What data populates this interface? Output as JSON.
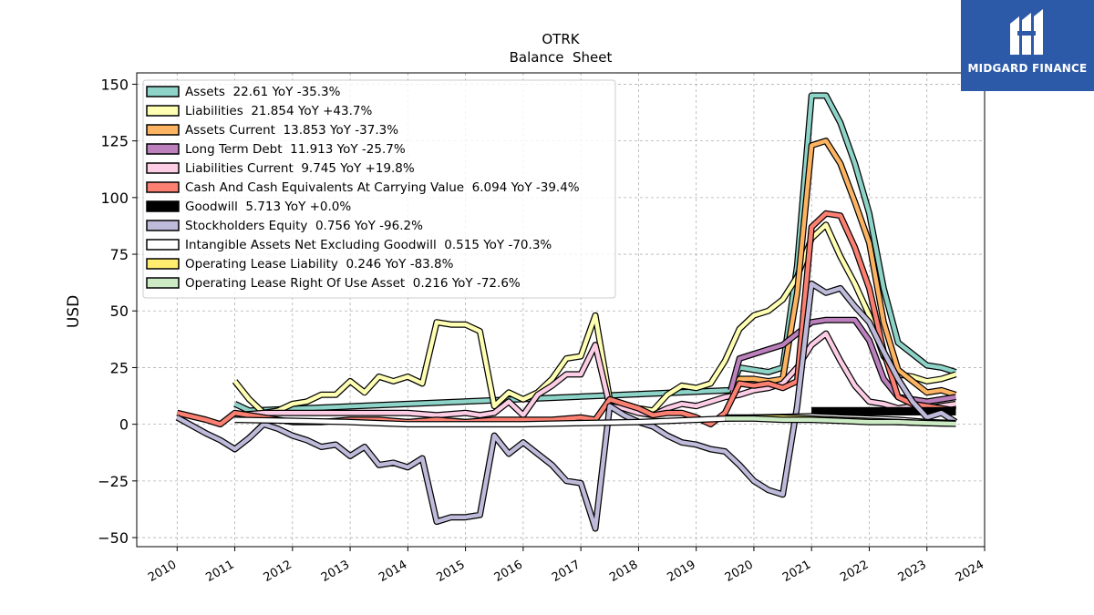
{
  "brand": {
    "name": "MIDGARD FINANCE",
    "color": "#2d5aa8"
  },
  "chart_data": {
    "type": "line",
    "title": "OTRK",
    "subtitle": "Balance  Sheet",
    "xlabel": "",
    "ylabel": "USD",
    "xlim": [
      2009.3,
      2024.0
    ],
    "ylim": [
      -54,
      155
    ],
    "x_ticks": [
      "2010",
      "2011",
      "2012",
      "2013",
      "2014",
      "2015",
      "2016",
      "2017",
      "2018",
      "2019",
      "2020",
      "2021",
      "2022",
      "2023",
      "2024"
    ],
    "y_ticks": [
      "150",
      "125",
      "100",
      "75",
      "50",
      "25",
      "0",
      "−25",
      "−50"
    ],
    "grid": true,
    "legend_position": "top-left",
    "series": [
      {
        "name": "Assets",
        "legend": "Assets  22.61 YoY -35.3%",
        "color": "#8dd3c7",
        "x": [
          2011.0,
          2011.25,
          2019.6,
          2019.75,
          2020.0,
          2020.25,
          2020.5,
          2020.75,
          2021.0,
          2021.25,
          2021.5,
          2021.75,
          2022.0,
          2022.25,
          2022.5,
          2022.75,
          2023.0,
          2023.25,
          2023.5
        ],
        "y": [
          9,
          6,
          15,
          25,
          24,
          23,
          25,
          70,
          145,
          145,
          133,
          115,
          93,
          60,
          36,
          31,
          26,
          25,
          23
        ]
      },
      {
        "name": "Liabilities",
        "legend": "Liabilities  21.854 YoY +43.7%",
        "color": "#ffffb3",
        "x": [
          2011.0,
          2011.25,
          2011.5,
          2011.75,
          2012.0,
          2012.25,
          2012.5,
          2012.75,
          2013.0,
          2013.25,
          2013.5,
          2013.75,
          2014.0,
          2014.25,
          2014.5,
          2014.75,
          2015.0,
          2015.25,
          2015.5,
          2015.75,
          2016.0,
          2016.25,
          2016.5,
          2016.75,
          2017.0,
          2017.25,
          2017.5,
          2017.75,
          2018.0,
          2018.25,
          2018.5,
          2018.75,
          2019.0,
          2019.25,
          2019.5,
          2019.75,
          2020.0,
          2020.25,
          2020.5,
          2020.75,
          2021.0,
          2021.25,
          2021.5,
          2021.75,
          2022.0,
          2022.25,
          2022.5,
          2022.75,
          2023.0,
          2023.25,
          2023.5
        ],
        "y": [
          19,
          11,
          5,
          6,
          9,
          10,
          13,
          13,
          19,
          14,
          21,
          19,
          21,
          18,
          45,
          44,
          44,
          41,
          8,
          14,
          11,
          14,
          20,
          29,
          30,
          48,
          11,
          9,
          7,
          6,
          13,
          17,
          16,
          18,
          28,
          42,
          48,
          50,
          55,
          65,
          82,
          88,
          74,
          62,
          48,
          30,
          22,
          21,
          19,
          20,
          22
        ]
      },
      {
        "name": "Assets Current",
        "legend": "Assets Current  13.853 YoY -37.3%",
        "color": "#fdb462",
        "x": [
          2019.6,
          2019.75,
          2020.0,
          2020.25,
          2020.5,
          2020.75,
          2021.0,
          2021.25,
          2021.5,
          2021.75,
          2022.0,
          2022.25,
          2022.5,
          2022.75,
          2023.0,
          2023.25,
          2023.5
        ],
        "y": [
          12,
          20,
          20,
          19,
          20,
          58,
          123,
          125,
          115,
          98,
          80,
          45,
          24,
          19,
          14,
          15,
          13
        ]
      },
      {
        "name": "Long Term Debt",
        "legend": "Long Term Debt  11.913 YoY -25.7%",
        "color": "#bc80bd",
        "x": [
          2019.6,
          2019.75,
          2020.0,
          2020.25,
          2020.5,
          2020.75,
          2021.0,
          2021.25,
          2021.5,
          2021.75,
          2022.0,
          2022.25,
          2022.5,
          2022.75,
          2023.0,
          2023.25,
          2023.5
        ],
        "y": [
          15,
          29,
          31,
          33,
          35,
          40,
          45,
          46,
          46,
          46,
          37,
          20,
          12,
          11,
          10,
          11,
          12
        ]
      },
      {
        "name": "Liabilities Current",
        "legend": "Liabilities Current  9.745 YoY +19.8%",
        "color": "#fccde5",
        "x": [
          2011.0,
          2011.5,
          2012.0,
          2012.5,
          2013.0,
          2013.5,
          2014.0,
          2014.5,
          2015.0,
          2015.25,
          2015.5,
          2015.75,
          2016.0,
          2016.25,
          2016.5,
          2016.75,
          2017.0,
          2017.25,
          2017.5,
          2017.75,
          2018.0,
          2018.25,
          2018.5,
          2018.75,
          2019.0,
          2019.25,
          2019.5,
          2019.75,
          2020.0,
          2020.25,
          2020.5,
          2020.75,
          2021.0,
          2021.25,
          2021.5,
          2021.75,
          2022.0,
          2022.25,
          2022.5,
          2022.75,
          2023.0,
          2023.25,
          2023.5
        ],
        "y": [
          4,
          5,
          5,
          5,
          5,
          5,
          5,
          4,
          5,
          4,
          5,
          10,
          4,
          13,
          17,
          22,
          22,
          35,
          8,
          7,
          5,
          4,
          7,
          9,
          8,
          10,
          12,
          13,
          15,
          16,
          18,
          25,
          35,
          40,
          28,
          17,
          10,
          9,
          7,
          8,
          7,
          8,
          9
        ]
      },
      {
        "name": "Cash And Cash Equivalents At Carrying Value",
        "legend": "Cash And Cash Equivalents At Carrying Value  6.094 YoY -39.4%",
        "color": "#fb8072",
        "x": [
          2010.0,
          2010.5,
          2010.75,
          2011.0,
          2011.5,
          2012.0,
          2012.5,
          2013.0,
          2013.5,
          2014.0,
          2014.5,
          2015.0,
          2015.5,
          2016.0,
          2016.5,
          2017.0,
          2017.25,
          2017.5,
          2017.75,
          2018.0,
          2018.25,
          2018.5,
          2018.75,
          2019.0,
          2019.25,
          2019.5,
          2019.75,
          2020.0,
          2020.25,
          2020.5,
          2020.75,
          2021.0,
          2021.25,
          2021.5,
          2021.75,
          2022.0,
          2022.25,
          2022.5,
          2022.75,
          2023.0,
          2023.25,
          2023.5
        ],
        "y": [
          5,
          2,
          0,
          5,
          3,
          1,
          1,
          2,
          2,
          1,
          2,
          1,
          2,
          2,
          2,
          3,
          2,
          11,
          9,
          7,
          4,
          5,
          5,
          3,
          0,
          5,
          18,
          17,
          18,
          16,
          19,
          87,
          93,
          92,
          78,
          60,
          32,
          12,
          9,
          8,
          7,
          6
        ]
      },
      {
        "name": "Goodwill",
        "legend": "Goodwill  5.713 YoY +0.0%",
        "color": "#000000",
        "x": [
          2021.0,
          2023.5
        ],
        "y": [
          5.713,
          5.713
        ]
      },
      {
        "name": "Stockholders Equity",
        "legend": "Stockholders Equity  0.756 YoY -96.2%",
        "color": "#bebada",
        "x": [
          2010.0,
          2010.5,
          2010.75,
          2011.0,
          2011.25,
          2011.5,
          2011.75,
          2012.0,
          2012.25,
          2012.5,
          2012.75,
          2013.0,
          2013.25,
          2013.5,
          2013.75,
          2014.0,
          2014.25,
          2014.5,
          2014.75,
          2015.0,
          2015.25,
          2015.5,
          2015.75,
          2016.0,
          2016.25,
          2016.5,
          2016.75,
          2017.0,
          2017.25,
          2017.5,
          2017.75,
          2018.0,
          2018.25,
          2018.5,
          2018.75,
          2019.0,
          2019.25,
          2019.5,
          2019.75,
          2020.0,
          2020.25,
          2020.5,
          2020.75,
          2021.0,
          2021.25,
          2021.5,
          2021.75,
          2022.0,
          2022.25,
          2022.5,
          2022.75,
          2023.0,
          2023.25,
          2023.5
        ],
        "y": [
          3,
          -4,
          -7,
          -11,
          -6,
          0,
          -2,
          -5,
          -7,
          -10,
          -9,
          -14,
          -10,
          -18,
          -17,
          -19,
          -15,
          -43,
          -41,
          -41,
          -40,
          -5,
          -13,
          -8,
          -13,
          -18,
          -25,
          -26,
          -46,
          8,
          4,
          1,
          -1,
          -5,
          -8,
          -9,
          -11,
          -12,
          -18,
          -25,
          -29,
          -31,
          8,
          62,
          58,
          60,
          52,
          45,
          32,
          20,
          10,
          3,
          5,
          1
        ]
      },
      {
        "name": "Intangible Assets Net Excluding Goodwill",
        "legend": "Intangible Assets Net Excluding Goodwill  0.515 YoY -70.3%",
        "color": "#ffffff",
        "x": [
          2011.0,
          2012.0,
          2013.0,
          2014.0,
          2015.0,
          2016.0,
          2017.0,
          2018.0,
          2019.0,
          2020.0,
          2021.0,
          2021.5,
          2022.0,
          2022.5,
          2023.0,
          2023.5
        ],
        "y": [
          2,
          1.5,
          1,
          0,
          0,
          0,
          0.5,
          1,
          2,
          3,
          3.5,
          3,
          2.5,
          2,
          1,
          0.5
        ]
      },
      {
        "name": "Operating Lease Liability",
        "legend": "Operating Lease Liability  0.246 YoY -83.8%",
        "color": "#ffed6f",
        "x": [
          2019.5,
          2020.0,
          2020.5,
          2021.0,
          2021.5,
          2022.0,
          2022.5,
          2023.0,
          2023.5
        ],
        "y": [
          3,
          3,
          3,
          2.5,
          2,
          1.5,
          1,
          0.5,
          0.25
        ]
      },
      {
        "name": "Operating Lease Right Of Use Asset",
        "legend": "Operating Lease Right Of Use Asset  0.216 YoY -72.6%",
        "color": "#ccebc5",
        "x": [
          2019.5,
          2020.0,
          2020.5,
          2021.0,
          2021.5,
          2022.0,
          2022.5,
          2023.0,
          2023.5
        ],
        "y": [
          2.5,
          2.5,
          2,
          2,
          1.5,
          1,
          1,
          0.5,
          0.2
        ]
      }
    ]
  }
}
